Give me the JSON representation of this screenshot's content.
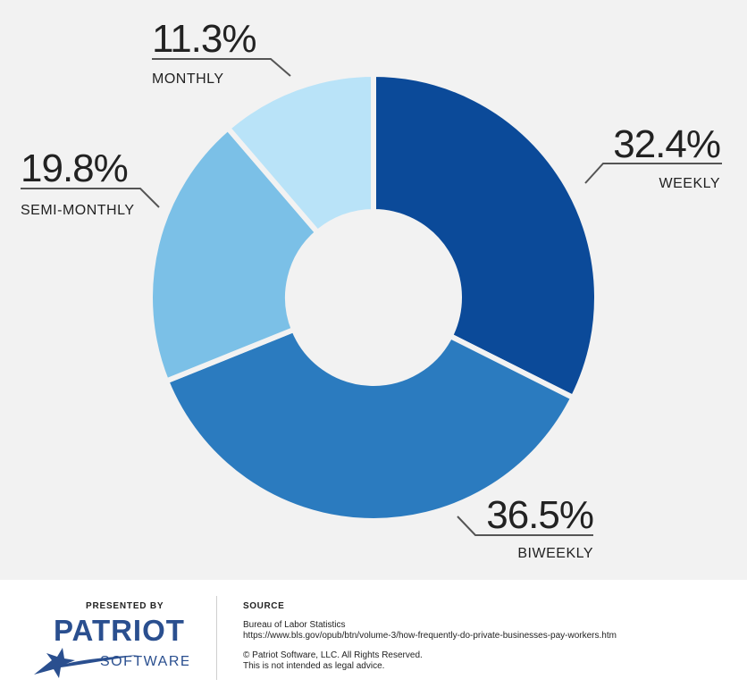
{
  "chart_data": {
    "type": "pie",
    "style": "donut",
    "title": "",
    "slices": [
      {
        "label": "WEEKLY",
        "value": 32.4,
        "display": "32.4%",
        "color": "#0b4a99"
      },
      {
        "label": "BIWEEKLY",
        "value": 36.5,
        "display": "36.5%",
        "color": "#2b7bbf"
      },
      {
        "label": "SEMI-MONTHLY",
        "value": 19.8,
        "display": "19.8%",
        "color": "#7bc0e7"
      },
      {
        "label": "MONTHLY",
        "value": 11.3,
        "display": "11.3%",
        "color": "#b9e3f8"
      }
    ],
    "legend": "none"
  },
  "footer": {
    "presented_by": "PRESENTED BY",
    "logo": {
      "name": "PATRIOT",
      "sub": "SOFTWARE",
      "color": "#2a4f8f"
    },
    "source_header": "SOURCE",
    "source_org": "Bureau of Labor Statistics",
    "source_url": "https://www.bls.gov/opub/btn/volume-3/how-frequently-do-private-businesses-pay-workers.htm",
    "copyright": "© Patriot Software, LLC. All Rights Reserved.",
    "disclaimer": "This is not intended as legal advice."
  }
}
